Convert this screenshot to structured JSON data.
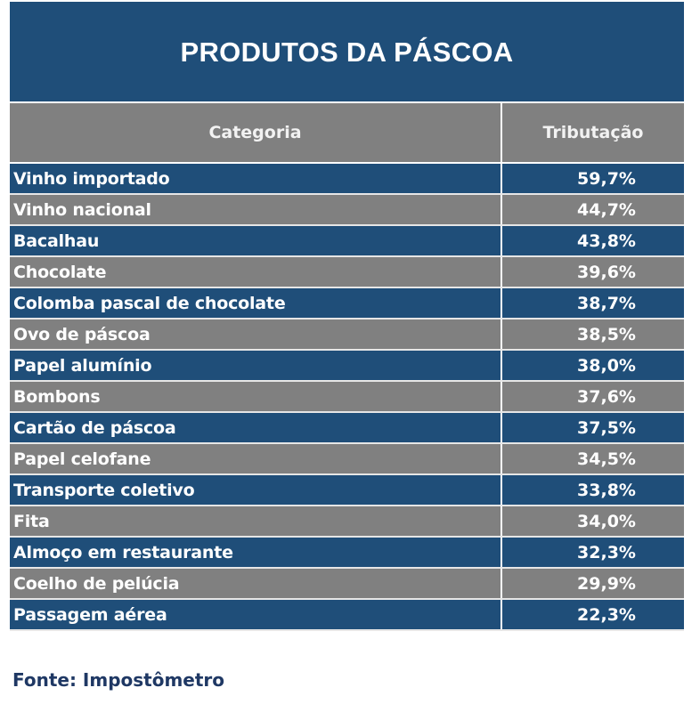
{
  "title": "PRODUTOS DA PÁSCOA",
  "table": {
    "headers": [
      "Categoria",
      "Tributação"
    ],
    "rows": [
      {
        "category": "Vinho importado",
        "tax": "59,7%"
      },
      {
        "category": "Vinho nacional",
        "tax": "44,7%"
      },
      {
        "category": "Bacalhau",
        "tax": "43,8%"
      },
      {
        "category": "Chocolate",
        "tax": "39,6%"
      },
      {
        "category": "Colomba pascal de chocolate",
        "tax": "38,7%"
      },
      {
        "category": "Ovo de páscoa",
        "tax": "38,5%"
      },
      {
        "category": "Papel alumínio",
        "tax": "38,0%"
      },
      {
        "category": "Bombons",
        "tax": "37,6%"
      },
      {
        "category": "Cartão de páscoa",
        "tax": "37,5%"
      },
      {
        "category": "Papel celofane",
        "tax": "34,5%"
      },
      {
        "category": "Transporte coletivo",
        "tax": "33,8%"
      },
      {
        "category": "Fita",
        "tax": "34,0%"
      },
      {
        "category": "Almoço em restaurante",
        "tax": "32,3%"
      },
      {
        "category": "Coelho de pelúcia",
        "tax": "29,9%"
      },
      {
        "category": "Passagem aérea",
        "tax": "22,3%"
      }
    ]
  },
  "footer": "Fonte: Impostômetro",
  "colors": {
    "title_bg": "#1f4e79",
    "header_bg": "#808080",
    "row_blue": "#1f4e79",
    "row_gray": "#808080",
    "footer_text": "#1f3864"
  }
}
